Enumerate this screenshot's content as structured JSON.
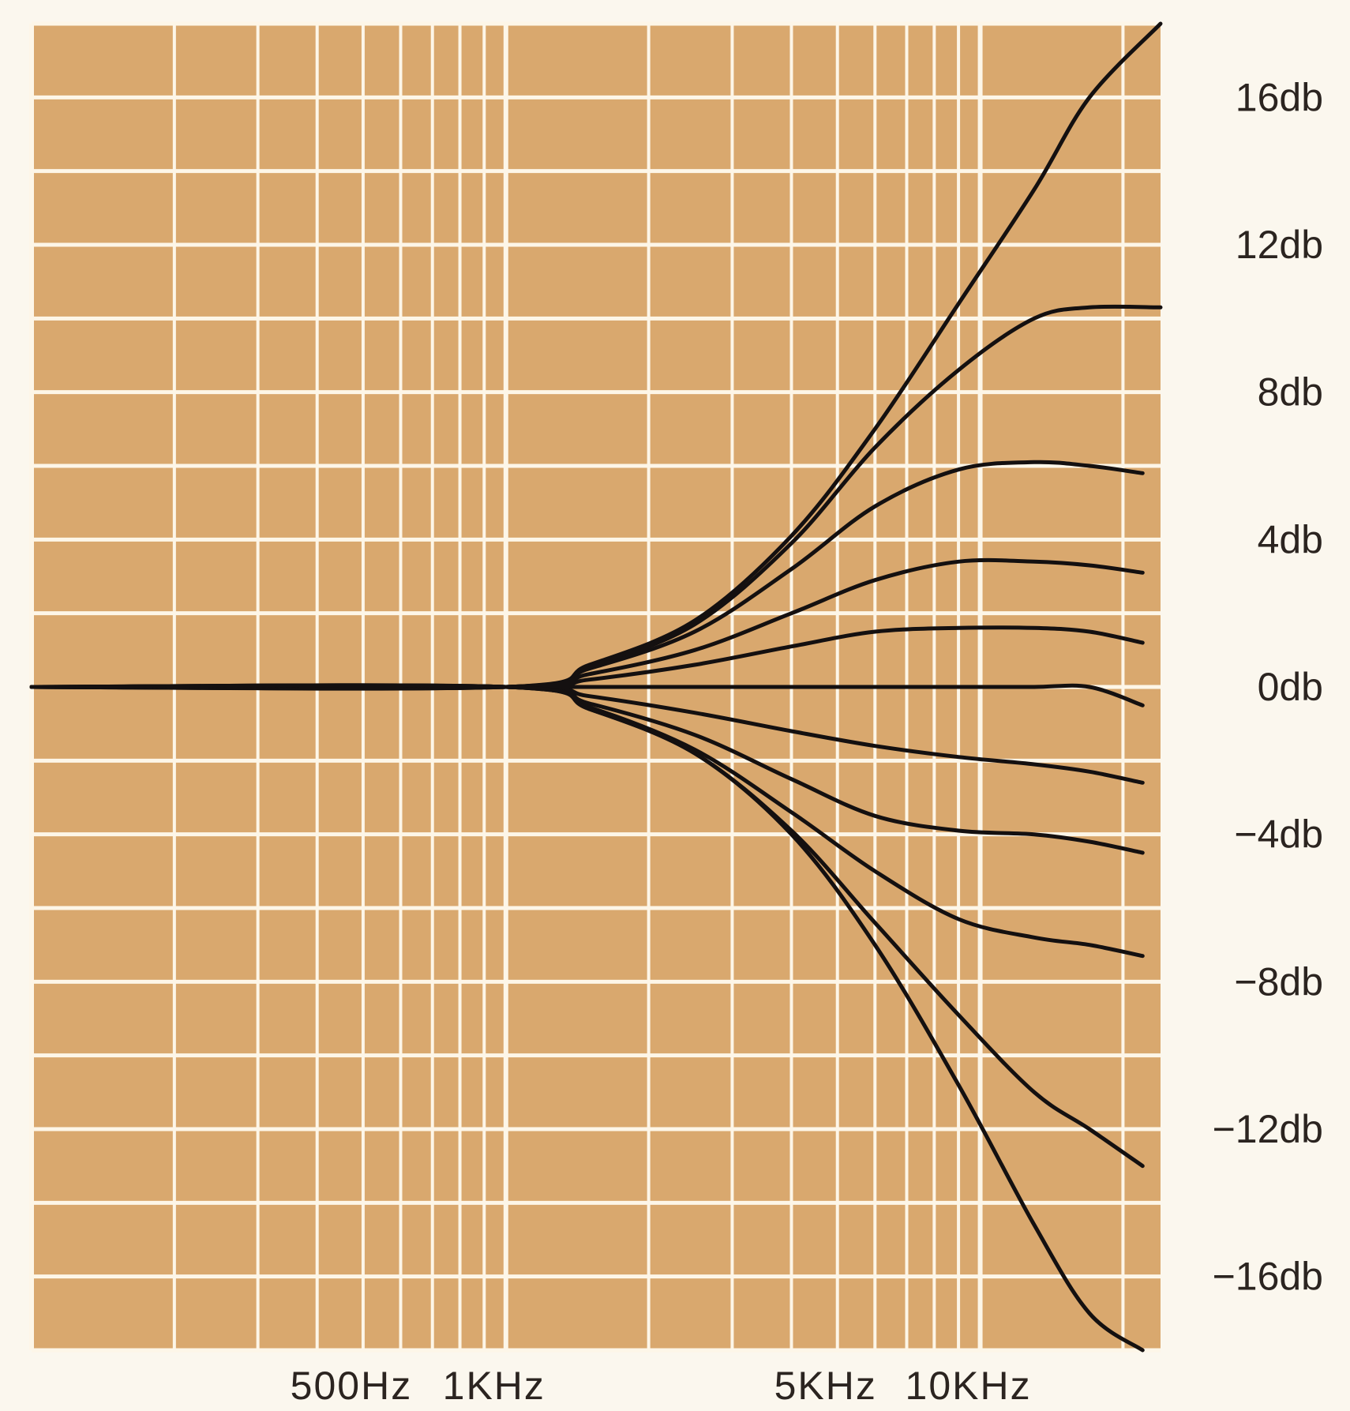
{
  "chart_data": {
    "type": "line",
    "title": "",
    "xlabel": "",
    "ylabel": "",
    "x_scale": "log",
    "xlim": [
      100,
      24000
    ],
    "ylim": [
      -18,
      18
    ],
    "x_ticks": [
      {
        "value": 500,
        "label": "500Hz"
      },
      {
        "value": 1000,
        "label": "1KHz"
      },
      {
        "value": 5000,
        "label": "5KHz"
      },
      {
        "value": 10000,
        "label": "10KHz"
      }
    ],
    "y_ticks": [
      {
        "value": 16,
        "label": "16db"
      },
      {
        "value": 12,
        "label": "12db"
      },
      {
        "value": 8,
        "label": "8db"
      },
      {
        "value": 4,
        "label": "4db"
      },
      {
        "value": 0,
        "label": "0db"
      },
      {
        "value": -4,
        "label": "−4db"
      },
      {
        "value": -8,
        "label": "−8db"
      },
      {
        "value": -12,
        "label": "−12db"
      },
      {
        "value": -16,
        "label": "−16db"
      }
    ],
    "grid": true,
    "background_color": "#d9a86e",
    "grid_color": "#fdf6e8",
    "line_color": "#141010",
    "series": [
      {
        "x": [
          100,
          1000,
          1500,
          2500,
          4000,
          6000,
          9000,
          13000,
          17000,
          24000
        ],
        "y": [
          0,
          0,
          0.6,
          1.8,
          4.1,
          7.0,
          10.4,
          13.5,
          16.0,
          18.0
        ]
      },
      {
        "x": [
          100,
          1000,
          1500,
          2500,
          4000,
          6000,
          9000,
          13000,
          17000,
          24000
        ],
        "y": [
          0,
          0,
          0.55,
          1.7,
          3.9,
          6.5,
          8.6,
          10.0,
          10.3,
          10.3
        ]
      },
      {
        "x": [
          100,
          1000,
          1500,
          2500,
          4000,
          6000,
          9000,
          13000,
          17000,
          22000
        ],
        "y": [
          0,
          0,
          0.5,
          1.5,
          3.2,
          4.9,
          5.9,
          6.1,
          6.0,
          5.8
        ]
      },
      {
        "x": [
          100,
          1000,
          1500,
          2500,
          4000,
          6000,
          9000,
          13000,
          17000,
          22000
        ],
        "y": [
          0,
          0,
          0.35,
          1.0,
          2.0,
          2.9,
          3.4,
          3.4,
          3.3,
          3.1
        ]
      },
      {
        "x": [
          100,
          1000,
          1500,
          2500,
          4000,
          6000,
          9000,
          13000,
          17000,
          22000
        ],
        "y": [
          0,
          0,
          0.2,
          0.6,
          1.1,
          1.5,
          1.6,
          1.6,
          1.5,
          1.2
        ]
      },
      {
        "x": [
          100,
          1000,
          1500,
          2500,
          4000,
          6000,
          9000,
          13000,
          17000,
          22000
        ],
        "y": [
          0,
          0,
          0,
          0,
          0,
          0,
          0,
          0,
          0,
          -0.5
        ]
      },
      {
        "x": [
          100,
          1000,
          1500,
          2500,
          4000,
          6000,
          9000,
          13000,
          17000,
          22000
        ],
        "y": [
          0,
          0,
          -0.25,
          -0.7,
          -1.2,
          -1.6,
          -1.9,
          -2.1,
          -2.3,
          -2.6
        ]
      },
      {
        "x": [
          100,
          1000,
          1500,
          2500,
          4000,
          6000,
          9000,
          13000,
          17000,
          22000
        ],
        "y": [
          0,
          0,
          -0.45,
          -1.3,
          -2.5,
          -3.5,
          -3.9,
          -4.0,
          -4.2,
          -4.5
        ]
      },
      {
        "x": [
          100,
          1000,
          1500,
          2500,
          4000,
          6000,
          9000,
          13000,
          17000,
          22000
        ],
        "y": [
          0,
          0,
          -0.55,
          -1.7,
          -3.4,
          -5.0,
          -6.3,
          -6.8,
          -7.0,
          -7.3
        ]
      },
      {
        "x": [
          100,
          1000,
          1500,
          2500,
          4000,
          6000,
          9000,
          13000,
          17000,
          22000
        ],
        "y": [
          0,
          0,
          -0.6,
          -1.8,
          -3.9,
          -6.4,
          -8.9,
          -11.0,
          -12.0,
          -13.0
        ]
      },
      {
        "x": [
          100,
          1000,
          1500,
          2500,
          4000,
          6000,
          9000,
          13000,
          17000,
          22000
        ],
        "y": [
          0,
          0,
          -0.6,
          -1.8,
          -4.0,
          -7.0,
          -10.8,
          -14.6,
          -17.0,
          -18.0
        ]
      }
    ]
  }
}
